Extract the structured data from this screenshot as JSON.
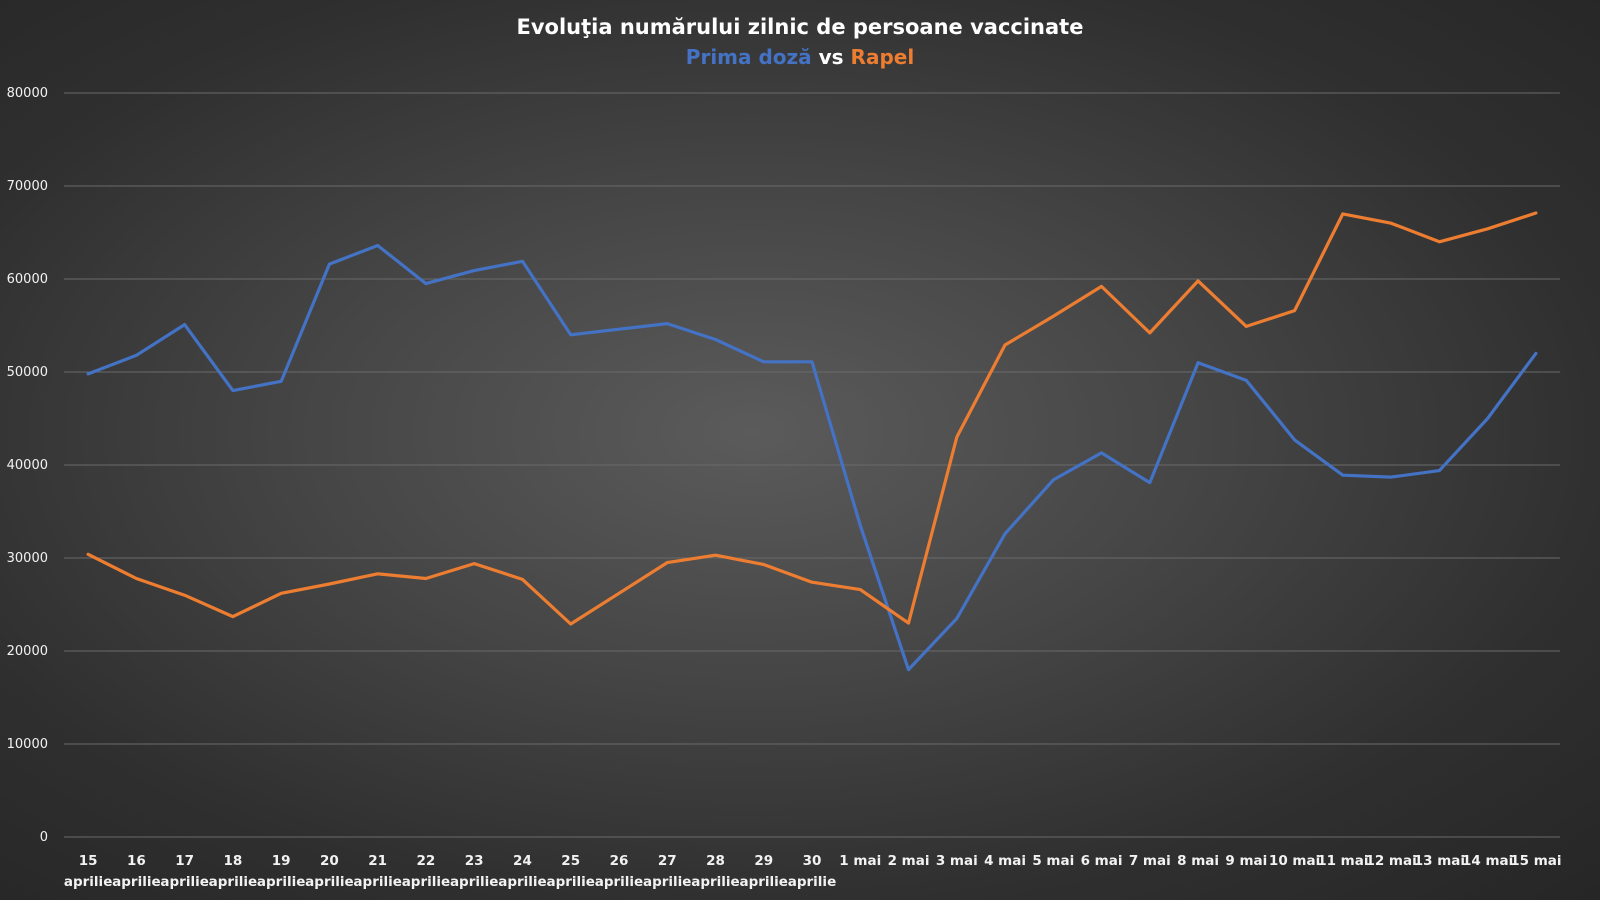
{
  "colors": {
    "first_dose": "#4472C4",
    "booster": "#ED7D31",
    "text": "#FFFFFF",
    "grid": "#6A6A6A"
  },
  "chart_data": {
    "type": "line",
    "title": "Evoluţia numărului zilnic de persoane vaccinate",
    "subtitle": {
      "part1": "Prima doză",
      "part2": " vs ",
      "part3": "Rapel"
    },
    "xlabel": "",
    "ylabel": "",
    "ylim": [
      0,
      80000
    ],
    "yticks": [
      "0",
      "10000",
      "20000",
      "30000",
      "40000",
      "50000",
      "60000",
      "70000",
      "80000"
    ],
    "grid": true,
    "categories": [
      [
        "15",
        "aprilie"
      ],
      [
        "16",
        "aprilie"
      ],
      [
        "17",
        "aprilie"
      ],
      [
        "18",
        "aprilie"
      ],
      [
        "19",
        "aprilie"
      ],
      [
        "20",
        "aprilie"
      ],
      [
        "21",
        "aprilie"
      ],
      [
        "22",
        "aprilie"
      ],
      [
        "23",
        "aprilie"
      ],
      [
        "24",
        "aprilie"
      ],
      [
        "25",
        "aprilie"
      ],
      [
        "26",
        "aprilie"
      ],
      [
        "27",
        "aprilie"
      ],
      [
        "28",
        "aprilie"
      ],
      [
        "29",
        "aprilie"
      ],
      [
        "30",
        "aprilie"
      ],
      [
        "1 mai"
      ],
      [
        "2 mai"
      ],
      [
        "3 mai"
      ],
      [
        "4 mai"
      ],
      [
        "5 mai"
      ],
      [
        "6 mai"
      ],
      [
        "7 mai"
      ],
      [
        "8 mai"
      ],
      [
        "9 mai"
      ],
      [
        "10 mai"
      ],
      [
        "11 mai"
      ],
      [
        "12 mai"
      ],
      [
        "13 mai"
      ],
      [
        "14 mai"
      ],
      [
        "15 mai"
      ]
    ],
    "series": [
      {
        "name": "Prima doză",
        "color": "#4472C4",
        "values": [
          49800,
          51800,
          55100,
          48000,
          49000,
          61600,
          63600,
          59500,
          60900,
          61900,
          54000,
          54600,
          55200,
          53500,
          51100,
          51100,
          33500,
          18000,
          23500,
          32600,
          38400,
          41300,
          38100,
          51000,
          49100,
          42700,
          38900,
          38700,
          39400,
          45000,
          52000
        ]
      },
      {
        "name": "Rapel",
        "color": "#ED7D31",
        "values": [
          30400,
          27800,
          26000,
          23700,
          26200,
          27200,
          28300,
          27800,
          29400,
          27700,
          22900,
          26200,
          29500,
          30300,
          29300,
          27400,
          26600,
          23000,
          43000,
          52900,
          56000,
          59200,
          54200,
          59800,
          54900,
          56600,
          67000,
          66000,
          64000,
          65400,
          67100
        ]
      }
    ]
  }
}
